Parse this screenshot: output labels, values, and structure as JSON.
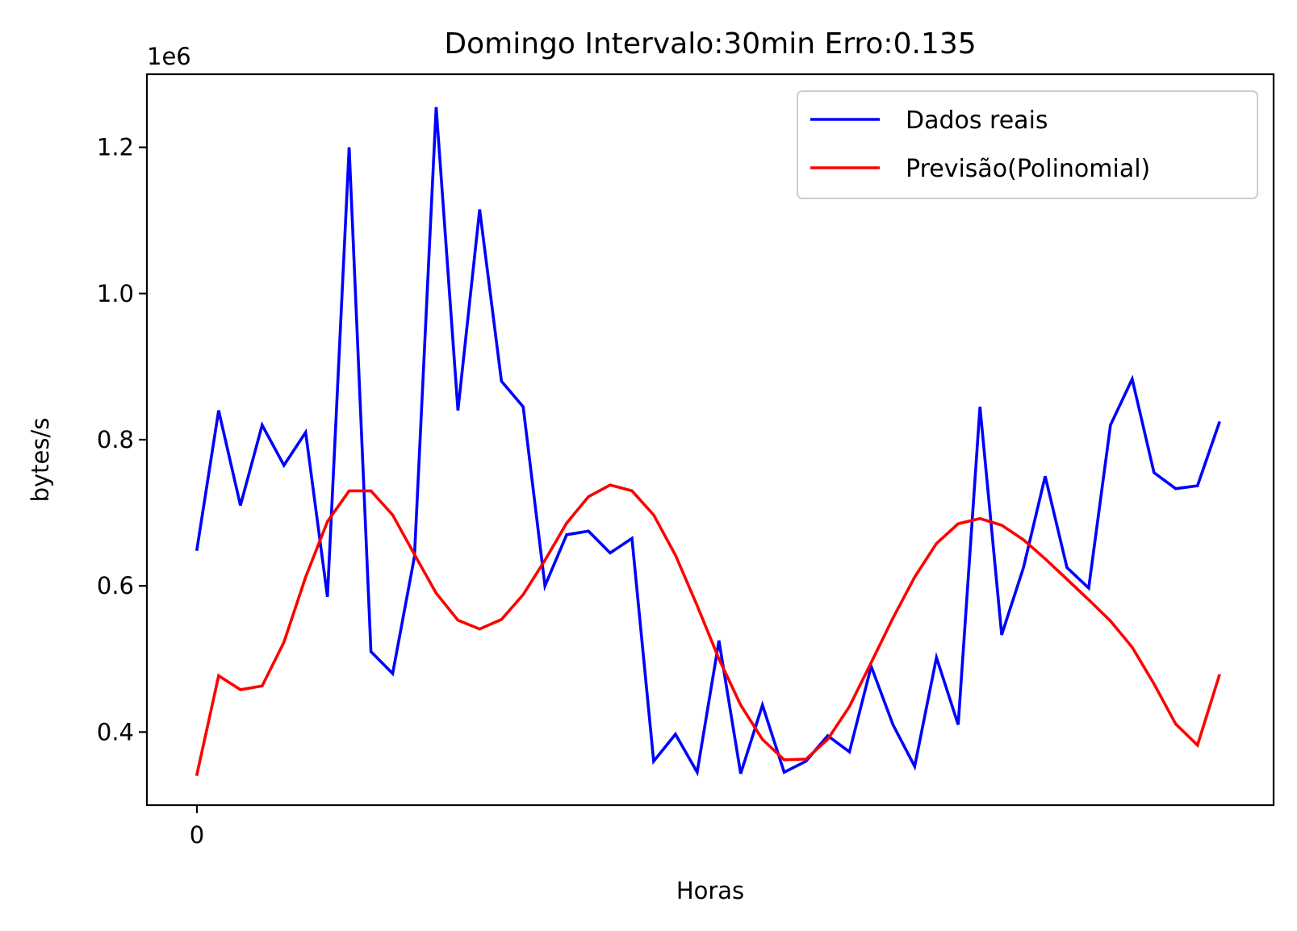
{
  "chart_data": {
    "type": "line",
    "title": "Domingo Intervalo:30min Erro:0.135",
    "xlabel": "Horas",
    "ylabel": "bytes/s",
    "y_offset_label": "1e6",
    "x_tick_labels": [
      "0"
    ],
    "y_ticks": [
      0.4,
      0.6,
      0.8,
      1.0,
      1.2
    ],
    "y_tick_labels": [
      "0.4",
      "0.6",
      "0.8",
      "1.0",
      "1.2"
    ],
    "ylim": [
      0.3,
      1.3
    ],
    "xlim": [
      -2.3,
      49.5
    ],
    "grid": false,
    "legend_position": "top-right",
    "x": [
      0,
      1,
      2,
      3,
      4,
      5,
      6,
      7,
      8,
      9,
      10,
      11,
      12,
      13,
      14,
      15,
      16,
      17,
      18,
      19,
      20,
      21,
      22,
      23,
      24,
      25,
      26,
      27,
      28,
      29,
      30,
      31,
      32,
      33,
      34,
      35,
      36,
      37,
      38,
      39,
      40,
      41,
      42,
      43,
      44,
      45,
      46,
      47
    ],
    "series": [
      {
        "name": "Dados reais",
        "color": "#0000ff",
        "values": [
          0.65,
          0.84,
          0.71,
          0.82,
          0.765,
          0.81,
          0.585,
          1.2,
          0.51,
          0.48,
          0.64,
          1.255,
          0.84,
          1.115,
          0.88,
          0.845,
          0.6,
          0.67,
          0.675,
          0.645,
          0.665,
          0.36,
          0.397,
          0.345,
          0.525,
          0.343,
          0.437,
          0.345,
          0.36,
          0.395,
          0.373,
          0.49,
          0.41,
          0.353,
          0.502,
          0.41,
          0.845,
          0.533,
          0.625,
          0.75,
          0.625,
          0.597,
          0.82,
          0.883,
          0.755,
          0.733,
          0.737,
          0.823
        ]
      },
      {
        "name": "Previsão(Polinomial)",
        "color": "#ff0000",
        "values": [
          0.342,
          0.477,
          0.458,
          0.463,
          0.523,
          0.612,
          0.688,
          0.73,
          0.73,
          0.697,
          0.643,
          0.59,
          0.553,
          0.541,
          0.554,
          0.588,
          0.635,
          0.686,
          0.722,
          0.738,
          0.73,
          0.697,
          0.642,
          0.573,
          0.5,
          0.437,
          0.39,
          0.362,
          0.363,
          0.39,
          0.435,
          0.495,
          0.556,
          0.612,
          0.658,
          0.685,
          0.692,
          0.683,
          0.663,
          0.637,
          0.609,
          0.581,
          0.552,
          0.516,
          0.466,
          0.411,
          0.382,
          0.477
        ]
      }
    ]
  }
}
